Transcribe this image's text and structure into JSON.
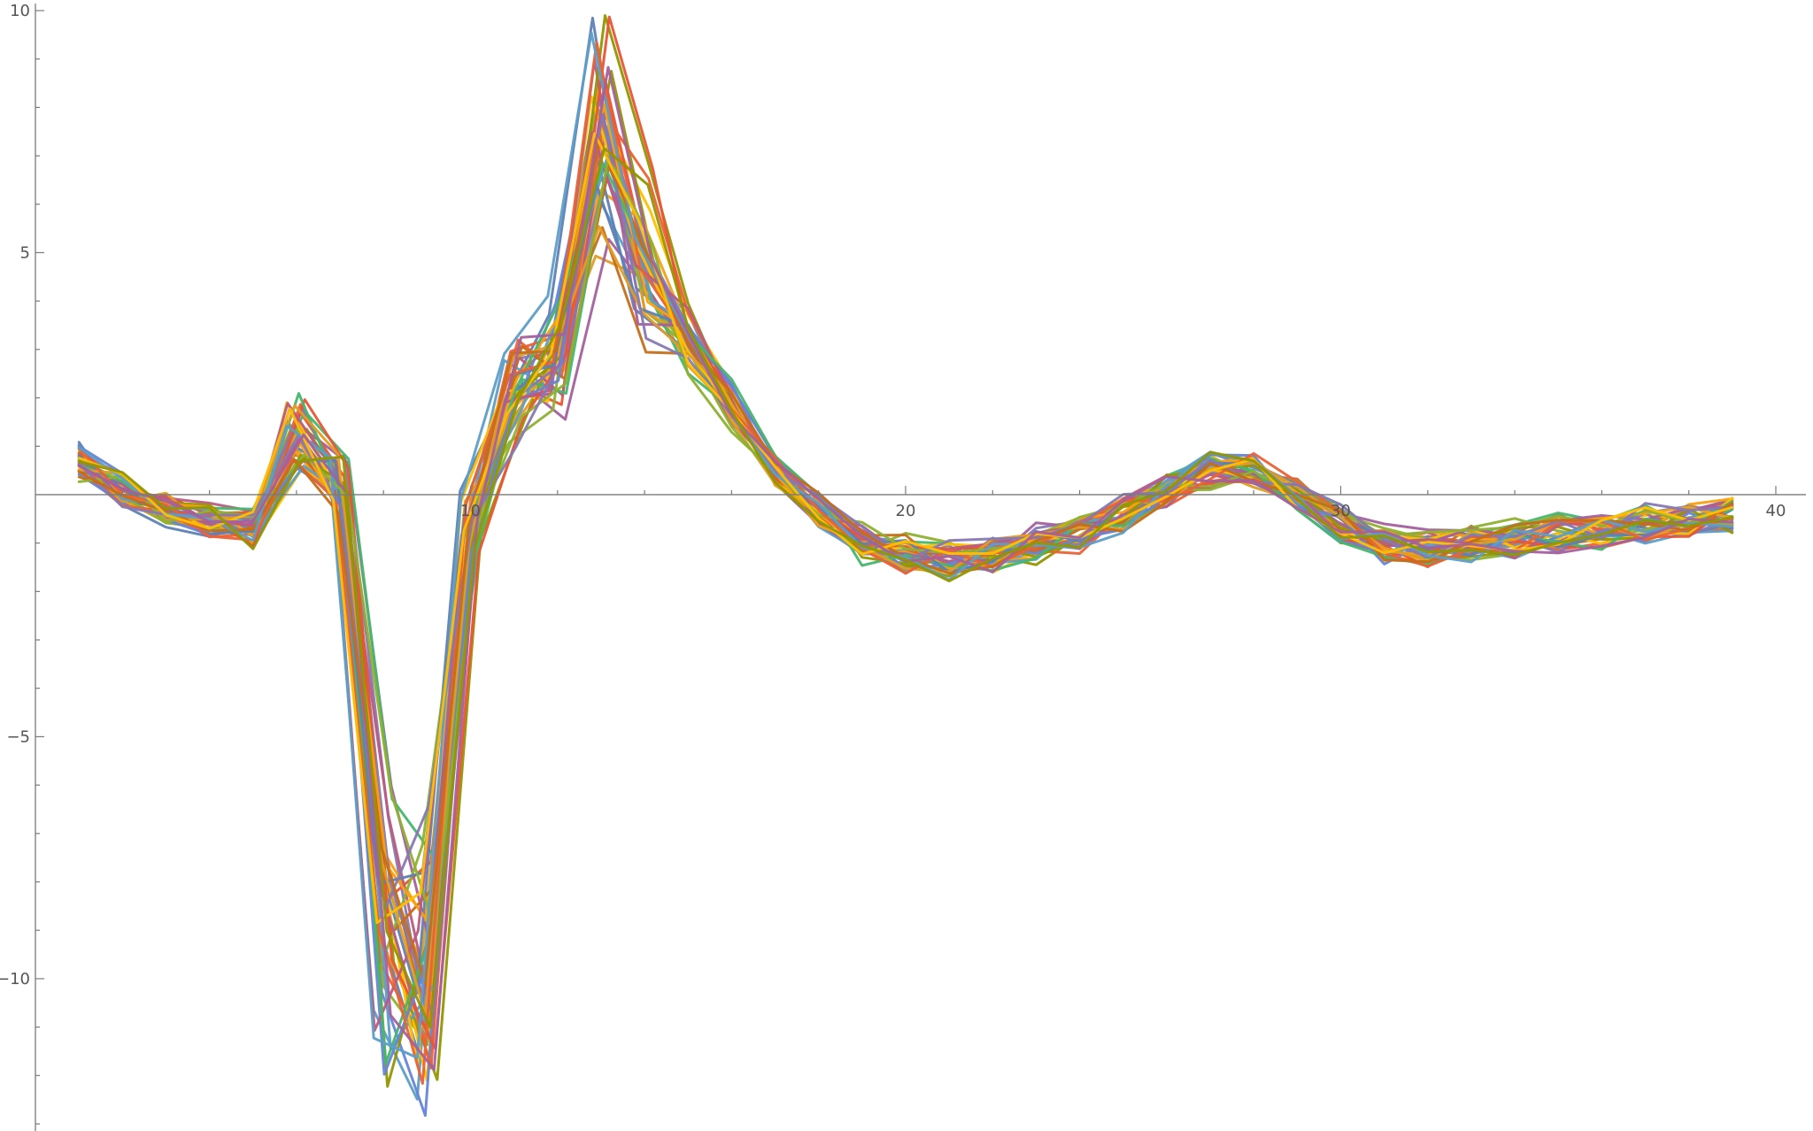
{
  "chart_data": {
    "type": "line",
    "title": "",
    "xlabel": "",
    "ylabel": "",
    "xlim": [
      0,
      40
    ],
    "ylim": [
      -13,
      10
    ],
    "grid": false,
    "legend": "none",
    "x_ticks": [
      10,
      20,
      30,
      40
    ],
    "y_ticks": [
      10,
      5,
      -5,
      -10
    ],
    "x_tick_labels": [
      "10",
      "20",
      "30",
      "40"
    ],
    "y_tick_labels": [
      "10",
      "5",
      "−5",
      "−10"
    ],
    "series_count": 40,
    "palette": [
      "#5e81b5",
      "#e19c24",
      "#8fb032",
      "#eb6235",
      "#8778b3",
      "#c56e1a",
      "#5d9ec7",
      "#ffbf00",
      "#a5609d",
      "#929600",
      "#e95536",
      "#6685d9",
      "#f89f13",
      "#bc5b80",
      "#47b66d"
    ],
    "base_profile": {
      "x": [
        1,
        2,
        3,
        4,
        5,
        6,
        7,
        8,
        9,
        10,
        11,
        12,
        13,
        14,
        15,
        16,
        17,
        18,
        19,
        20,
        21,
        22,
        23,
        24,
        25,
        26,
        27,
        28,
        29,
        30,
        31,
        32,
        33,
        34,
        35,
        36,
        37,
        38,
        39,
        40
      ],
      "y": [
        0.7,
        0.1,
        -0.3,
        -0.5,
        -0.7,
        1.2,
        0.2,
        -9.0,
        -9.8,
        -0.5,
        2.2,
        2.8,
        7.3,
        4.8,
        3.2,
        1.8,
        0.5,
        -0.3,
        -1.0,
        -1.2,
        -1.3,
        -1.2,
        -1.0,
        -0.8,
        -0.4,
        0.1,
        0.5,
        0.5,
        0.0,
        -0.6,
        -1.0,
        -1.1,
        -1.0,
        -0.9,
        -0.8,
        -0.7,
        -0.6,
        -0.5,
        -0.4,
        -0.4
      ]
    },
    "extremes": {
      "max": {
        "x": 13,
        "y": 8.8
      },
      "min": {
        "x": 9,
        "y": -12.1
      }
    }
  }
}
